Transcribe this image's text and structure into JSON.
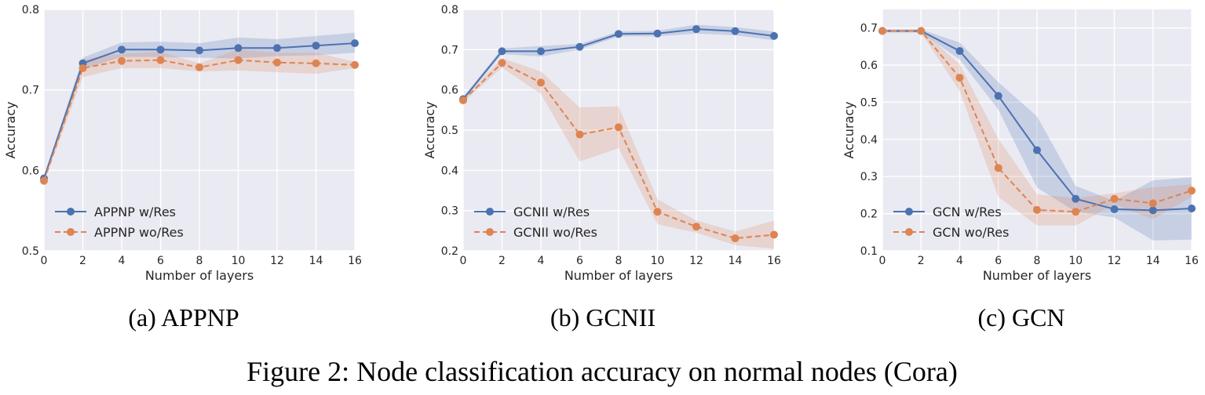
{
  "figure_caption": "Figure 2: Node classification accuracy on normal nodes (Cora)",
  "colors": {
    "w_res": "#4c72b0",
    "wo_res": "#dd8452",
    "panel_bg": "#eaeaf2",
    "grid": "#ffffff"
  },
  "chart_data": [
    {
      "type": "line",
      "caption": "(a) APPNP",
      "xlabel": "Number of layers",
      "ylabel": "Accuracy",
      "xlim": [
        0,
        16
      ],
      "ylim": [
        0.5,
        0.8
      ],
      "x_ticks": [
        0,
        2,
        4,
        6,
        8,
        10,
        12,
        14,
        16
      ],
      "y_ticks": [
        0.5,
        0.6,
        0.7,
        0.8
      ],
      "y_tick_labels": [
        "0.5",
        "0.6",
        "0.7",
        "0.8"
      ],
      "legend_position": "lower-left",
      "grid": true,
      "series": [
        {
          "name": "APPNP w/Res",
          "style": "solid",
          "x": [
            0,
            2,
            4,
            6,
            8,
            10,
            12,
            14,
            16
          ],
          "y": [
            0.59,
            0.733,
            0.75,
            0.75,
            0.749,
            0.752,
            0.752,
            0.755,
            0.758
          ],
          "band_low": [
            0.588,
            0.726,
            0.741,
            0.741,
            0.74,
            0.739,
            0.742,
            0.743,
            0.746
          ],
          "band_high": [
            0.592,
            0.74,
            0.759,
            0.76,
            0.758,
            0.765,
            0.763,
            0.767,
            0.771
          ]
        },
        {
          "name": "APPNP wo/Res",
          "style": "dashed",
          "x": [
            0,
            2,
            4,
            6,
            8,
            10,
            12,
            14,
            16
          ],
          "y": [
            0.587,
            0.727,
            0.736,
            0.737,
            0.728,
            0.737,
            0.734,
            0.733,
            0.731
          ],
          "band_low": [
            0.585,
            0.716,
            0.727,
            0.727,
            0.723,
            0.724,
            0.722,
            0.72,
            0.727
          ],
          "band_high": [
            0.589,
            0.738,
            0.745,
            0.747,
            0.733,
            0.75,
            0.746,
            0.746,
            0.735
          ]
        }
      ]
    },
    {
      "type": "line",
      "caption": "(b) GCNII",
      "xlabel": "Number of layers",
      "ylabel": "Accuracy",
      "xlim": [
        0,
        16
      ],
      "ylim": [
        0.2,
        0.8
      ],
      "x_ticks": [
        0,
        2,
        4,
        6,
        8,
        10,
        12,
        14,
        16
      ],
      "y_ticks": [
        0.2,
        0.3,
        0.4,
        0.5,
        0.6,
        0.7,
        0.8
      ],
      "y_tick_labels": [
        "0.2",
        "0.3",
        "0.4",
        "0.5",
        "0.6",
        "0.7",
        "0.8"
      ],
      "legend_position": "lower-left",
      "grid": true,
      "series": [
        {
          "name": "GCNII w/Res",
          "style": "solid",
          "x": [
            0,
            2,
            4,
            6,
            8,
            10,
            12,
            14,
            16
          ],
          "y": [
            0.577,
            0.696,
            0.696,
            0.707,
            0.739,
            0.74,
            0.751,
            0.746,
            0.734
          ],
          "band_low": [
            0.572,
            0.689,
            0.683,
            0.7,
            0.733,
            0.733,
            0.74,
            0.736,
            0.723
          ],
          "band_high": [
            0.582,
            0.703,
            0.709,
            0.714,
            0.745,
            0.747,
            0.762,
            0.756,
            0.745
          ]
        },
        {
          "name": "GCNII wo/Res",
          "style": "dashed",
          "x": [
            0,
            2,
            4,
            6,
            8,
            10,
            12,
            14,
            16
          ],
          "y": [
            0.574,
            0.667,
            0.618,
            0.489,
            0.507,
            0.297,
            0.26,
            0.231,
            0.24
          ],
          "band_low": [
            0.57,
            0.655,
            0.59,
            0.422,
            0.455,
            0.266,
            0.245,
            0.214,
            0.205
          ],
          "band_high": [
            0.578,
            0.679,
            0.646,
            0.556,
            0.559,
            0.328,
            0.275,
            0.248,
            0.275
          ]
        }
      ]
    },
    {
      "type": "line",
      "caption": "(c) GCN",
      "xlabel": "Number of layers",
      "ylabel": "Accuracy",
      "xlim": [
        0,
        16
      ],
      "ylim": [
        0.1,
        0.75
      ],
      "x_ticks": [
        0,
        2,
        4,
        6,
        8,
        10,
        12,
        14,
        16
      ],
      "y_ticks": [
        0.1,
        0.2,
        0.3,
        0.4,
        0.5,
        0.6,
        0.7
      ],
      "y_tick_labels": [
        "0.1",
        "0.2",
        "0.3",
        "0.4",
        "0.5",
        "0.6",
        "0.7"
      ],
      "legend_position": "lower-left",
      "grid": true,
      "series": [
        {
          "name": "GCN w/Res",
          "style": "solid",
          "x": [
            0,
            2,
            4,
            6,
            8,
            10,
            12,
            14,
            16
          ],
          "y": [
            0.692,
            0.692,
            0.638,
            0.517,
            0.371,
            0.24,
            0.212,
            0.209,
            0.214
          ],
          "band_low": [
            0.688,
            0.688,
            0.615,
            0.48,
            0.27,
            0.205,
            0.19,
            0.128,
            0.13
          ],
          "band_high": [
            0.696,
            0.696,
            0.661,
            0.554,
            0.462,
            0.275,
            0.234,
            0.29,
            0.298
          ]
        },
        {
          "name": "GCN wo/Res",
          "style": "dashed",
          "x": [
            0,
            2,
            4,
            6,
            8,
            10,
            12,
            14,
            16
          ],
          "y": [
            0.692,
            0.692,
            0.566,
            0.323,
            0.21,
            0.205,
            0.24,
            0.228,
            0.262
          ],
          "band_low": [
            0.688,
            0.688,
            0.53,
            0.245,
            0.168,
            0.168,
            0.225,
            0.185,
            0.245
          ],
          "band_high": [
            0.696,
            0.696,
            0.602,
            0.401,
            0.252,
            0.242,
            0.255,
            0.271,
            0.279
          ]
        }
      ]
    }
  ]
}
